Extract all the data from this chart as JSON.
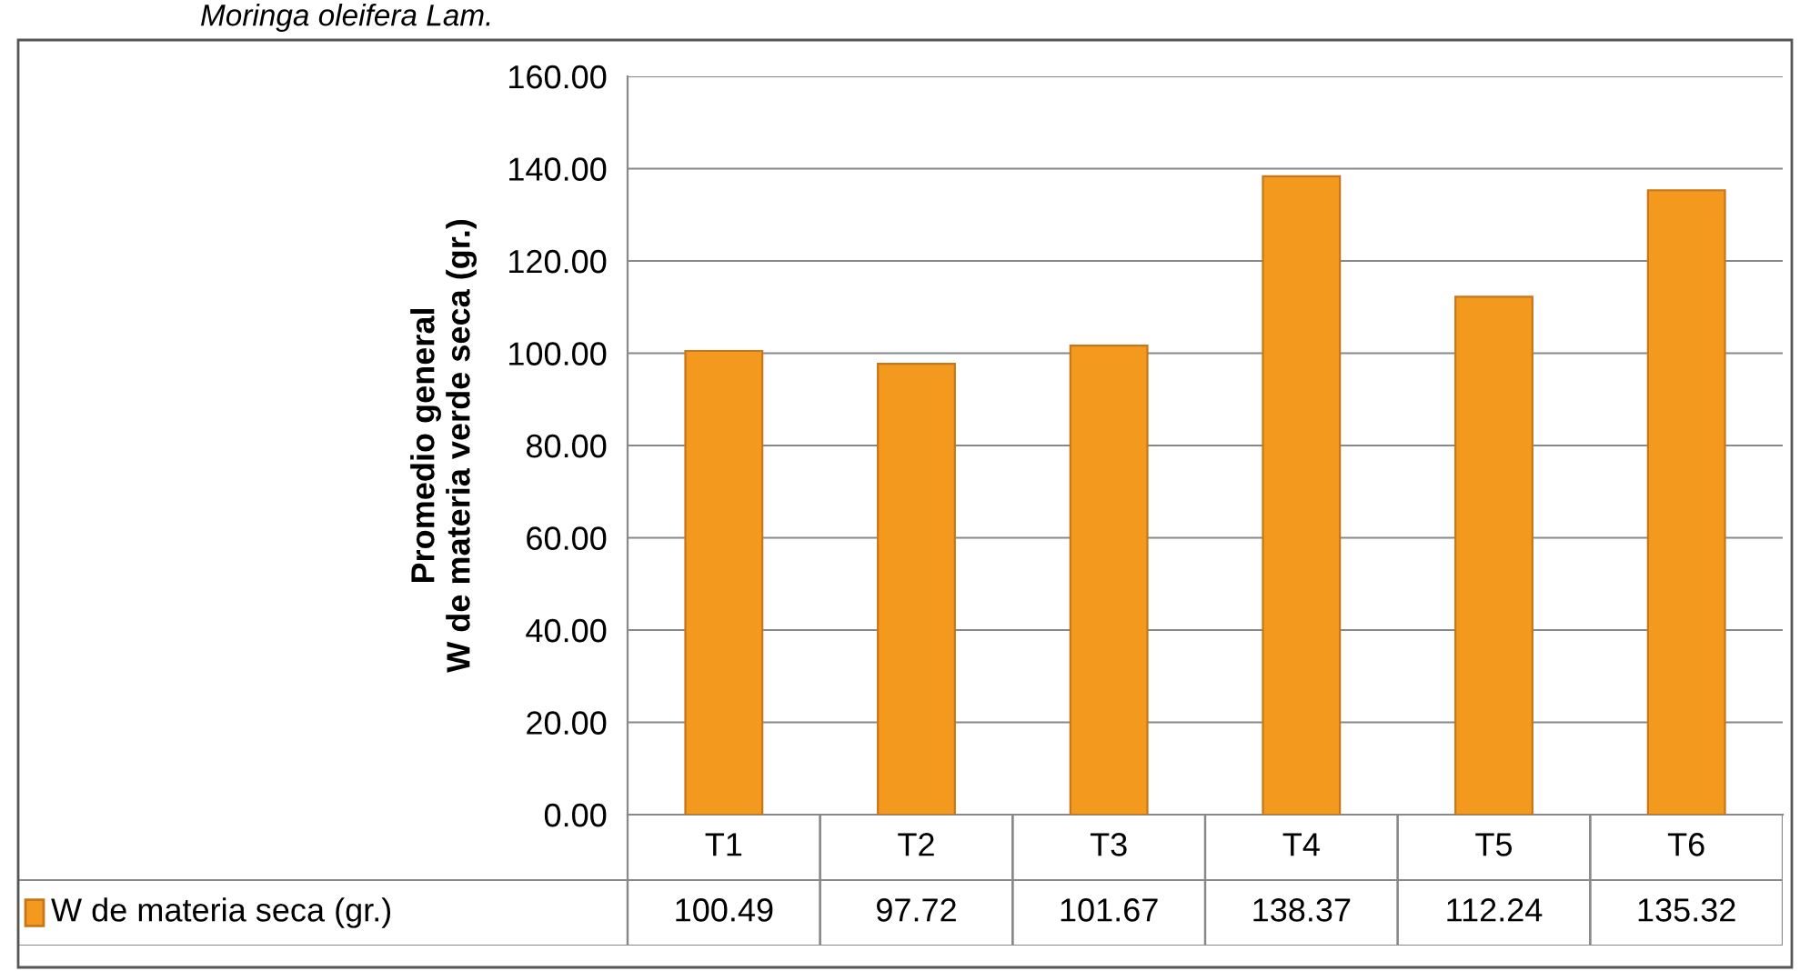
{
  "chart_data": {
    "type": "bar",
    "title": "Moringa oleifera Lam.",
    "ylabel": "Promedio general\nW de materia verde seca (gr.)",
    "categories": [
      "T1",
      "T2",
      "T3",
      "T4",
      "T5",
      "T6"
    ],
    "series": [
      {
        "name": "W de materia seca (gr.)",
        "color": "#f39a1e",
        "values": [
          100.49,
          97.72,
          101.67,
          138.37,
          112.24,
          135.32
        ]
      }
    ],
    "ylim": [
      0,
      160
    ],
    "yticks": [
      {
        "value": 0,
        "label": "0.00"
      },
      {
        "value": 20,
        "label": "20.00"
      },
      {
        "value": 40,
        "label": "40.00"
      },
      {
        "value": 60,
        "label": "60.00"
      },
      {
        "value": 80,
        "label": "80.00"
      },
      {
        "value": 100,
        "label": "100.00"
      },
      {
        "value": 120,
        "label": "120.00"
      },
      {
        "value": 140,
        "label": "140.00"
      },
      {
        "value": 160,
        "label": "160.00"
      }
    ],
    "grid": "y",
    "legend": "bottom",
    "data_labels": true
  }
}
